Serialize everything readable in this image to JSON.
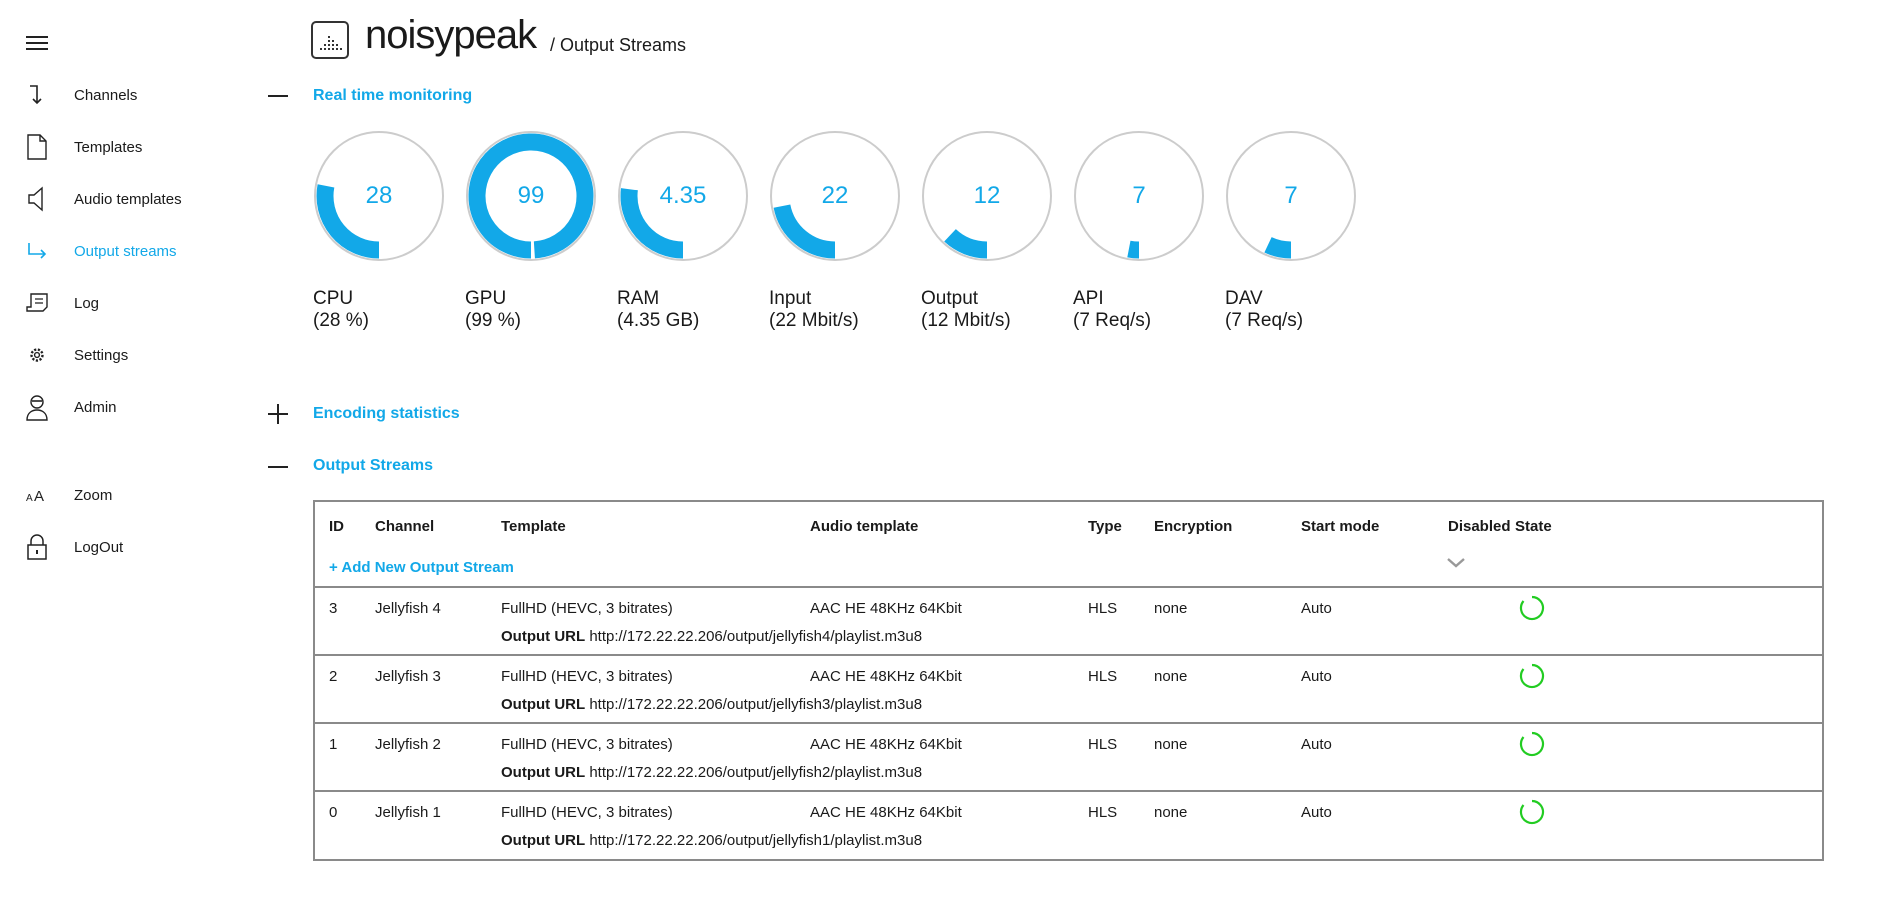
{
  "sidebar": {
    "items": [
      {
        "label": "Channels",
        "icon": "arrow-down-icon"
      },
      {
        "label": "Templates",
        "icon": "document-icon"
      },
      {
        "label": "Audio templates",
        "icon": "speaker-icon"
      },
      {
        "label": "Output streams",
        "icon": "arrow-right-icon",
        "active": true
      },
      {
        "label": "Log",
        "icon": "log-icon"
      },
      {
        "label": "Settings",
        "icon": "gear-icon"
      },
      {
        "label": "Admin",
        "icon": "user-icon"
      },
      {
        "label": "Zoom",
        "icon": "zoom-text-icon"
      },
      {
        "label": "LogOut",
        "icon": "lock-icon"
      }
    ]
  },
  "header": {
    "brand": "noisypeak",
    "breadcrumb": "/ Output Streams"
  },
  "sections": {
    "realtime": "Real time monitoring",
    "encoding": "Encoding statistics",
    "output": "Output Streams"
  },
  "gauges": [
    {
      "value": "28",
      "level": 0.28,
      "name": "CPU",
      "detail": "(28 %)"
    },
    {
      "value": "99",
      "level": 0.99,
      "name": "GPU",
      "detail": "(99 %)"
    },
    {
      "value": "4.35",
      "level": 0.27,
      "name": "RAM",
      "detail": "(4.35 GB)"
    },
    {
      "value": "22",
      "level": 0.22,
      "name": "Input",
      "detail": "(22 Mbit/s)"
    },
    {
      "value": "12",
      "level": 0.12,
      "name": "Output",
      "detail": "(12 Mbit/s)"
    },
    {
      "value": "7",
      "level": 0.03,
      "name": "API",
      "detail": "(7 Req/s)"
    },
    {
      "value": "7",
      "level": 0.07,
      "name": "DAV",
      "detail": "(7 Req/s)"
    }
  ],
  "table": {
    "columns": [
      "ID",
      "Channel",
      "Template",
      "Audio template",
      "Type",
      "Encryption",
      "Start mode",
      "Disabled",
      "State"
    ],
    "add_label": "+ Add New Output Stream",
    "url_label": "Output URL",
    "rows": [
      {
        "id": "3",
        "channel": "Jellyfish 4",
        "template": "FullHD (HEVC, 3 bitrates)",
        "audio": "AAC HE 48KHz 64Kbit",
        "type": "HLS",
        "encryption": "none",
        "start_mode": "Auto",
        "url": "http://172.22.22.206/output/jellyfish4/playlist.m3u8"
      },
      {
        "id": "2",
        "channel": "Jellyfish 3",
        "template": "FullHD (HEVC, 3 bitrates)",
        "audio": "AAC HE 48KHz 64Kbit",
        "type": "HLS",
        "encryption": "none",
        "start_mode": "Auto",
        "url": "http://172.22.22.206/output/jellyfish3/playlist.m3u8"
      },
      {
        "id": "1",
        "channel": "Jellyfish 2",
        "template": "FullHD (HEVC, 3 bitrates)",
        "audio": "AAC HE 48KHz 64Kbit",
        "type": "HLS",
        "encryption": "none",
        "start_mode": "Auto",
        "url": "http://172.22.22.206/output/jellyfish2/playlist.m3u8"
      },
      {
        "id": "0",
        "channel": "Jellyfish 1",
        "template": "FullHD (HEVC, 3 bitrates)",
        "audio": "AAC HE 48KHz 64Kbit",
        "type": "HLS",
        "encryption": "none",
        "start_mode": "Auto",
        "url": "http://172.22.22.206/output/jellyfish1/playlist.m3u8"
      }
    ]
  },
  "colors": {
    "accent": "#12a8e8",
    "gauge_track": "#cccccc",
    "state_ok": "#22cc22",
    "border": "#8a8a8a"
  }
}
